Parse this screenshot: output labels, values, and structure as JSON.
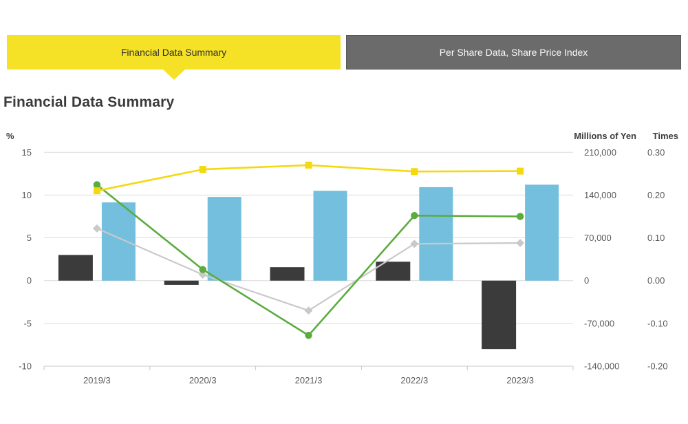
{
  "tabs": [
    {
      "label": "Financial Data Summary",
      "active": true
    },
    {
      "label": "Per Share Data, Share Price Index",
      "active": false
    }
  ],
  "page_title": "Financial Data Summary",
  "colors": {
    "background": "#FFFFFF",
    "active_tab": "#F5E227",
    "active_tab_text": "#2E2E2E",
    "inactive_tab": "#6B6B6B",
    "inactive_tab_border": "#595959",
    "inactive_tab_text": "#FBFBFB",
    "title_text": "#3A3A3A",
    "axis_text": "#595959",
    "axis_header_text": "#3D3D3D",
    "gridline": "#DBDBDB",
    "axis_line": "#C8C8C8"
  },
  "chart_data": {
    "type": "bar+line combo",
    "title": "Financial Data Summary",
    "categories": [
      "2019/3",
      "2020/3",
      "2021/3",
      "2022/3",
      "2023/3"
    ],
    "grid": true,
    "legend": "none",
    "axes": {
      "left": {
        "title": "%",
        "ticks": [
          "15",
          "10",
          "5",
          "0",
          "-5",
          "-10"
        ],
        "range": [
          -10,
          15
        ]
      },
      "right_yen": {
        "title": "Millions of Yen",
        "ticks": [
          "210,000",
          "140,000",
          "70,000",
          "0",
          "-70,000",
          "-140,000"
        ],
        "range": [
          -140000,
          210000
        ]
      },
      "right_times": {
        "title": "Times",
        "ticks": [
          "0.30",
          "0.20",
          "0.10",
          "0.00",
          "-0.10",
          "-0.20"
        ],
        "range": [
          -0.2,
          0.3
        ]
      }
    },
    "series": [
      {
        "name": "dark-gray-bars",
        "type": "bar",
        "axis": "yen",
        "color": "#3B3B3B",
        "values": [
          42000,
          -7000,
          22000,
          31000,
          -112000
        ]
      },
      {
        "name": "blue-bars",
        "type": "bar",
        "axis": "yen",
        "color": "#74BFDE",
        "values": [
          128000,
          137000,
          147000,
          153000,
          157000
        ]
      },
      {
        "name": "gray-line",
        "type": "line",
        "axis": "percent",
        "marker": "diamond",
        "color": "#C9C9C9",
        "values": [
          6.1,
          0.7,
          -3.5,
          4.3,
          4.4
        ]
      },
      {
        "name": "green-line",
        "type": "line",
        "axis": "percent",
        "marker": "circle",
        "color": "#5BAC3E",
        "values": [
          11.2,
          1.3,
          -6.4,
          7.6,
          7.5
        ]
      },
      {
        "name": "yellow-line",
        "type": "line",
        "axis": "times",
        "marker": "square",
        "color": "#F4D90F",
        "values": [
          0.21,
          0.26,
          0.27,
          0.255,
          0.256
        ]
      }
    ]
  }
}
